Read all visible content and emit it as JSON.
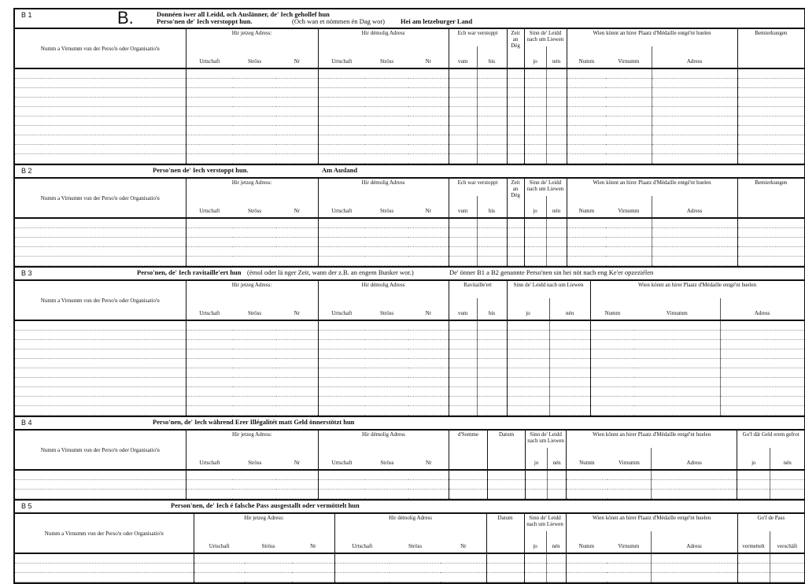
{
  "form": {
    "big_letter": "B.",
    "sections": [
      {
        "code": "B 1",
        "title_lines": [
          "Donnéen iwer all Leidd, och Auslänner, de' Iech gehollef hun",
          "Perso'nen de' Iech verstoppt hun."
        ],
        "title_note": "(Och wan et nömmen én Dag wor)",
        "title_extra": "Hei am letzeburger Land",
        "name_header": "Numm a Virnumm vun der Perso'n oder Organisatio'n",
        "groups": [
          {
            "label": "Hir jetzeg Adress:",
            "subs": [
              "Urtschaft",
              "Ströss",
              "Nr"
            ]
          },
          {
            "label": "Hir démolig Adress",
            "subs": [
              "Urtschaft",
              "Ströss",
              "Nr"
            ]
          },
          {
            "label": "Ech war verstoppt",
            "subs": [
              "vum",
              "bis"
            ]
          },
          {
            "label": "Zeit an Dég",
            "subs": []
          },
          {
            "label": "Sinn de' Leidd nach um Liewen",
            "subs": [
              "jo",
              "nén"
            ]
          },
          {
            "label": "Wien könnt an hirer Plaatz d'Médaille entgé'nt huelen",
            "subs": [
              "Numm",
              "Virnumm",
              "Adress"
            ]
          },
          {
            "label": "Bemierkungen",
            "subs": []
          }
        ]
      },
      {
        "code": "B 2",
        "title_lines": [
          "Perso'nen de' Iech verstoppt hun."
        ],
        "title_note": "",
        "title_extra": "Am Ausland",
        "name_header": "Numm a Virnumm vun der Perso'n oder Organisatio'n",
        "groups": [
          {
            "label": "Hir jetzeg Adress:",
            "subs": [
              "Urtschaft",
              "Ströss",
              "Nr"
            ]
          },
          {
            "label": "Hir démolig Adress",
            "subs": [
              "Urtschaft",
              "Ströss",
              "Nr"
            ]
          },
          {
            "label": "Ech war verstoppt",
            "subs": [
              "vum",
              "bis"
            ]
          },
          {
            "label": "Zeit an Dég",
            "subs": []
          },
          {
            "label": "Sinn de' Leidd nach um Liewen",
            "subs": [
              "jo",
              "nén"
            ]
          },
          {
            "label": "Wien könnt an hirer Plaatz d'Médaille entgé'nt huelen",
            "subs": [
              "Numm",
              "Virnumm",
              "Adress"
            ]
          },
          {
            "label": "Bemierkungen",
            "subs": []
          }
        ]
      },
      {
        "code": "B 3",
        "title_lines": [
          "Perso'nen, de' Iech ravitaille'ert hun"
        ],
        "title_note": "(émol oder lä nger Zeit, wann der z.B. an engem Bunker wor.)",
        "title_extra": "De' önner B1 a B2 genannte Perso'nen sin hei nöt nach eng Ke'er opzeziélen",
        "name_header": "Numm a Virnumm vun der Perso'n oder Organisatio'n",
        "groups": [
          {
            "label": "Hir jetzeg Adress:",
            "subs": [
              "Urtschaft",
              "Ströss",
              "Nr"
            ]
          },
          {
            "label": "Hir démolig Adress",
            "subs": [
              "Urtschaft",
              "Ströss",
              "Nr"
            ]
          },
          {
            "label": "Ravitaille'ert",
            "subs": [
              "vum",
              "bis"
            ]
          },
          {
            "label": "Sinn de' Leidd nach um Liewen",
            "subs": [
              "jo",
              "nén"
            ]
          },
          {
            "label": "Wien könnt an hirer Plaatz d'Médaille entgé'nt huelen",
            "subs": [
              "Numm",
              "Virnumm",
              "Adress"
            ]
          },
          {
            "label": "Bemierkungen",
            "subs": []
          }
        ]
      },
      {
        "code": "B 4",
        "title_lines": [
          "Perso'nen, de' Iech während Erer Illégalitét matt Geld önnerstötzt hun"
        ],
        "title_note": "",
        "title_extra": "",
        "name_header": "Numm a Virnumm vun der Perso'n oder Organisatio'n",
        "groups": [
          {
            "label": "Hir jetzeg Adress:",
            "subs": [
              "Urtschaft",
              "Ströss",
              "Nr"
            ]
          },
          {
            "label": "Hir démolig Adress",
            "subs": [
              "Urtschaft",
              "Ströss",
              "Nr"
            ]
          },
          {
            "label": "d'Somme",
            "subs": []
          },
          {
            "label": "Datum",
            "subs": []
          },
          {
            "label": "Sinn de' Leidd nach um Liewen",
            "subs": [
              "jo",
              "nén"
            ]
          },
          {
            "label": "Wien könnt an hirer Plaatz d'Médaille entgé'nt huelen",
            "subs": [
              "Numm",
              "Virnumm",
              "Adress"
            ]
          },
          {
            "label": "Go'f dät Geld erem gefrot",
            "subs": [
              "jo",
              "nén"
            ]
          }
        ]
      },
      {
        "code": "B 5",
        "title_lines": [
          "Person'nen, de' Iech é falsche Pass ausgestallt oder vermöttelt hun"
        ],
        "title_note": "",
        "title_extra": "",
        "name_header": "Numm a Virnumm vun der Perso'n oder Organisatio'n",
        "groups": [
          {
            "label": "Hir jetzeg Adress:",
            "subs": [
              "Urtschaft",
              "Ströss",
              "Nr"
            ]
          },
          {
            "label": "Hir démolig Adress",
            "subs": [
              "Urtschaft",
              "Ströss",
              "Nr"
            ]
          },
          {
            "label": "Datum",
            "subs": []
          },
          {
            "label": "Sinn de' Leidd nach um Liewen",
            "subs": [
              "jo",
              "nén"
            ]
          },
          {
            "label": "Wien könnt an hirer Plaatz d'Médaille entgé'nt huelen",
            "subs": [
              "Numm",
              "Virnumm",
              "Adress"
            ]
          },
          {
            "label": "Go'f de Pass",
            "subs": [
              "vermettelt",
              "verschäft"
            ]
          }
        ]
      }
    ]
  }
}
